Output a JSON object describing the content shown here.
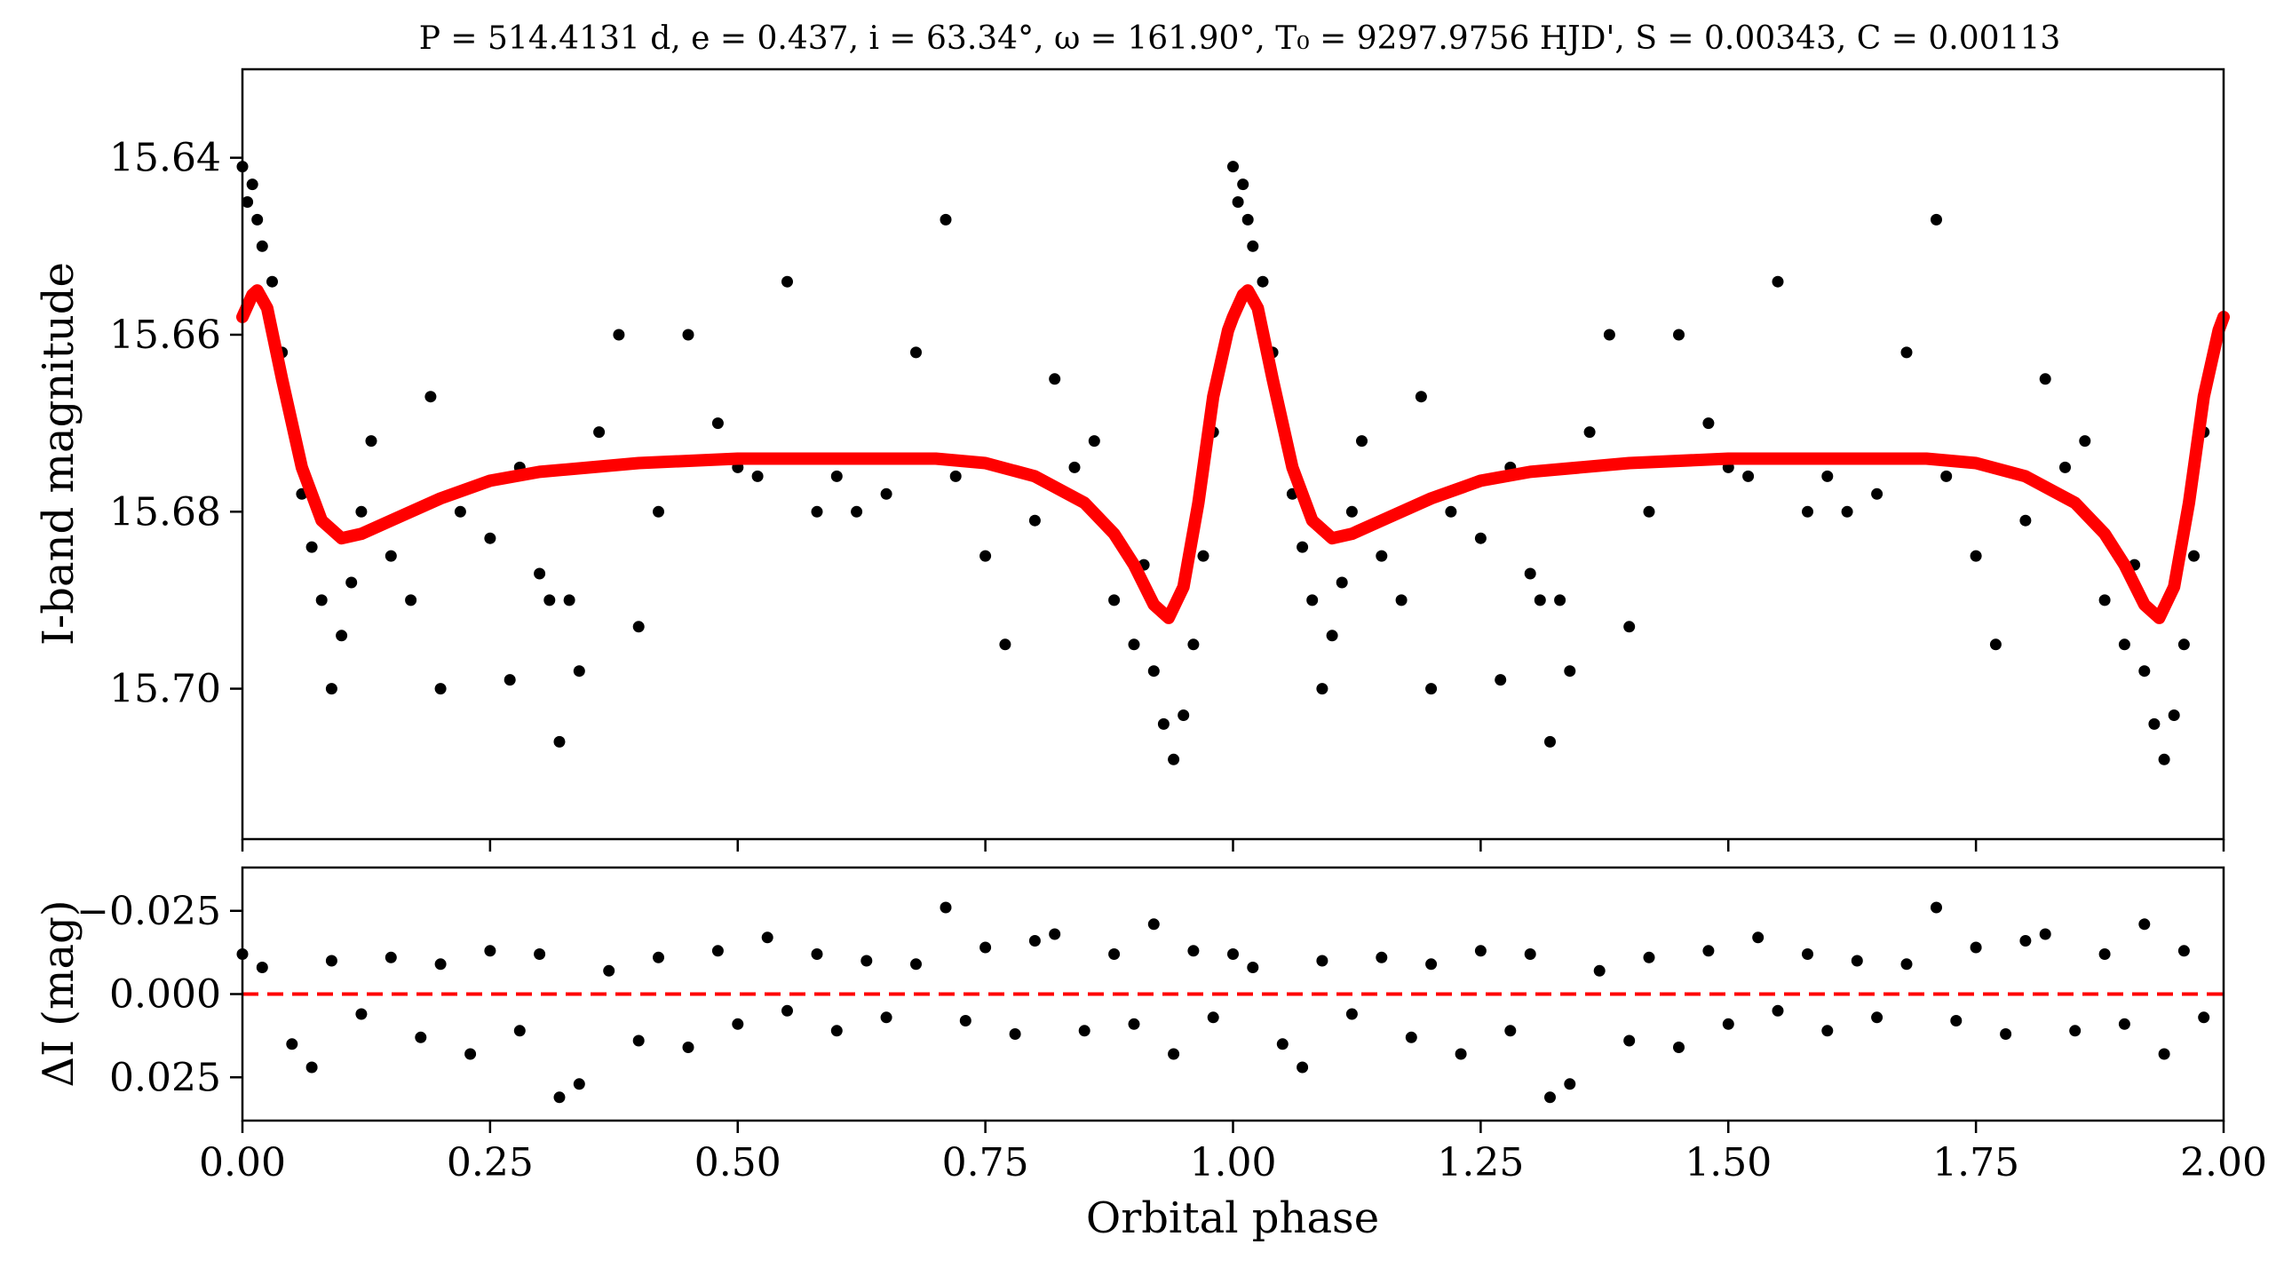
{
  "chart_data": [
    {
      "type": "scatter",
      "title": "P = 514.4131 d, e = 0.437, i = 63.34°, ω = 161.90°, T₀ = 9297.9756 HJD', S = 0.00343, C = 0.00113",
      "xlabel": "",
      "ylabel": "I-band magnitude",
      "xlim": [
        0.0,
        2.0
      ],
      "ylim": [
        15.717,
        15.63
      ],
      "y_inverted": true,
      "y_ticks": [
        "15.64",
        "15.66",
        "15.68",
        "15.70"
      ],
      "y_tick_values": [
        15.64,
        15.66,
        15.68,
        15.7
      ],
      "x_tick_values": [
        0.0,
        0.25,
        0.5,
        0.75,
        1.0,
        1.25,
        1.5,
        1.75,
        2.0
      ],
      "grid": false,
      "point_color": "#000000",
      "model_color": "#ff0000",
      "phase_repeats_at": 1.0,
      "model_fit": {
        "x": [
          0.0,
          0.01,
          0.015,
          0.025,
          0.04,
          0.06,
          0.08,
          0.1,
          0.12,
          0.15,
          0.2,
          0.25,
          0.3,
          0.4,
          0.5,
          0.6,
          0.7,
          0.75,
          0.8,
          0.85,
          0.88,
          0.9,
          0.92,
          0.935,
          0.95,
          0.965,
          0.98,
          0.995,
          1.0
        ],
        "y": [
          15.658,
          15.6555,
          15.655,
          15.657,
          15.665,
          15.675,
          15.681,
          15.683,
          15.6825,
          15.681,
          15.6785,
          15.6765,
          15.6755,
          15.6745,
          15.674,
          15.674,
          15.674,
          15.6745,
          15.676,
          15.679,
          15.6825,
          15.686,
          15.6905,
          15.692,
          15.6885,
          15.679,
          15.667,
          15.6595,
          15.658
        ]
      },
      "measurements": {
        "x": [
          0.0,
          0.005,
          0.01,
          0.015,
          0.02,
          0.03,
          0.04,
          0.05,
          0.06,
          0.07,
          0.08,
          0.09,
          0.1,
          0.11,
          0.12,
          0.13,
          0.15,
          0.17,
          0.19,
          0.2,
          0.22,
          0.25,
          0.27,
          0.28,
          0.3,
          0.31,
          0.32,
          0.33,
          0.34,
          0.36,
          0.38,
          0.4,
          0.42,
          0.45,
          0.48,
          0.5,
          0.52,
          0.55,
          0.58,
          0.6,
          0.62,
          0.65,
          0.68,
          0.71,
          0.72,
          0.75,
          0.77,
          0.8,
          0.82,
          0.84,
          0.86,
          0.88,
          0.9,
          0.91,
          0.92,
          0.93,
          0.94,
          0.95,
          0.96,
          0.97,
          0.98,
          0.99
        ],
        "y": [
          15.641,
          15.645,
          15.643,
          15.647,
          15.65,
          15.654,
          15.662,
          15.67,
          15.678,
          15.684,
          15.69,
          15.7,
          15.694,
          15.688,
          15.68,
          15.672,
          15.685,
          15.69,
          15.667,
          15.7,
          15.68,
          15.683,
          15.699,
          15.675,
          15.687,
          15.69,
          15.706,
          15.69,
          15.698,
          15.671,
          15.66,
          15.693,
          15.68,
          15.66,
          15.67,
          15.675,
          15.676,
          15.654,
          15.68,
          15.676,
          15.68,
          15.678,
          15.662,
          15.647,
          15.676,
          15.685,
          15.695,
          15.681,
          15.665,
          15.675,
          15.672,
          15.69,
          15.695,
          15.686,
          15.698,
          15.704,
          15.708,
          15.703,
          15.695,
          15.685,
          15.671,
          15.662
        ]
      }
    },
    {
      "type": "scatter",
      "xlabel": "Orbital phase",
      "ylabel": "ΔI (mag)",
      "xlim": [
        0.0,
        2.0
      ],
      "ylim": [
        0.038,
        -0.038
      ],
      "y_inverted": true,
      "x_ticks": [
        "0.00",
        "0.25",
        "0.50",
        "0.75",
        "1.00",
        "1.25",
        "1.50",
        "1.75",
        "2.00"
      ],
      "x_tick_values": [
        0.0,
        0.25,
        0.5,
        0.75,
        1.0,
        1.25,
        1.5,
        1.75,
        2.0
      ],
      "y_ticks": [
        "−0.025",
        "0.000",
        "0.025"
      ],
      "y_tick_values": [
        -0.025,
        0.0,
        0.025
      ],
      "zero_line": 0.0,
      "zero_line_color": "#ff0000",
      "grid": false,
      "point_color": "#000000",
      "phase_repeats_at": 1.0,
      "residuals": {
        "x": [
          0.0,
          0.02,
          0.05,
          0.07,
          0.09,
          0.12,
          0.15,
          0.18,
          0.2,
          0.23,
          0.25,
          0.28,
          0.3,
          0.32,
          0.34,
          0.37,
          0.4,
          0.42,
          0.45,
          0.48,
          0.5,
          0.53,
          0.55,
          0.58,
          0.6,
          0.63,
          0.65,
          0.68,
          0.71,
          0.73,
          0.75,
          0.78,
          0.8,
          0.82,
          0.85,
          0.88,
          0.9,
          0.92,
          0.94,
          0.96,
          0.98
        ],
        "y": [
          -0.012,
          -0.008,
          0.015,
          0.022,
          -0.01,
          0.006,
          -0.011,
          0.013,
          -0.009,
          0.018,
          -0.013,
          0.011,
          -0.012,
          0.031,
          0.027,
          -0.007,
          0.014,
          -0.011,
          0.016,
          -0.013,
          0.009,
          -0.017,
          0.005,
          -0.012,
          0.011,
          -0.01,
          0.007,
          -0.009,
          -0.026,
          0.008,
          -0.014,
          0.012,
          -0.016,
          -0.018,
          0.011,
          -0.012,
          0.009,
          -0.021,
          0.018,
          -0.013,
          0.007
        ]
      }
    }
  ]
}
